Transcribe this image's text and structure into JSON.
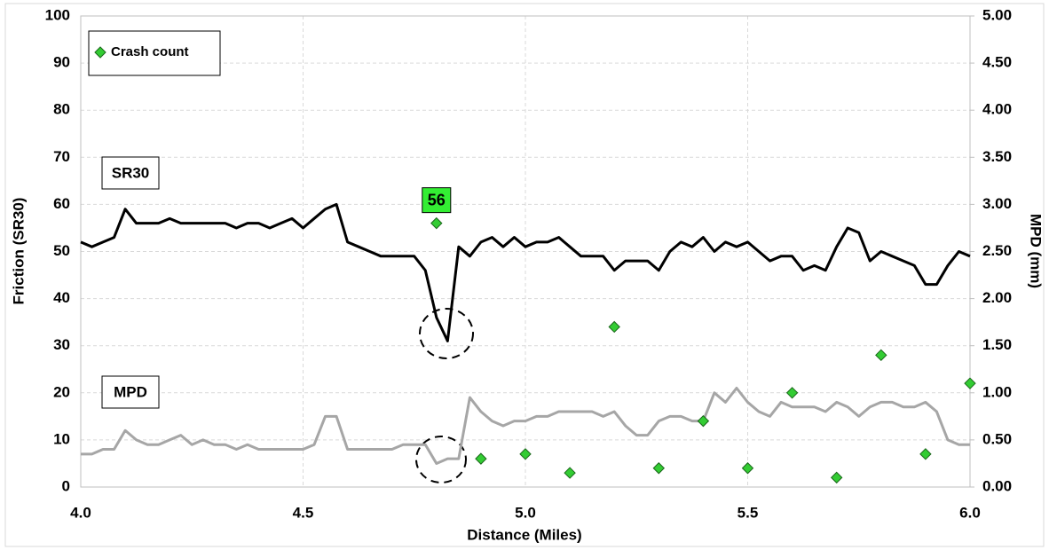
{
  "chart_data": {
    "type": "line",
    "xlabel": "Distance (Miles)",
    "ylabel": "Friction (SR30)",
    "y2label": "MPD (mm)",
    "xlim": [
      4,
      6
    ],
    "xticks": [
      {
        "value": 4,
        "label": "4.0"
      },
      4.5,
      {
        "value": 5,
        "label": "5.0"
      },
      5.5,
      {
        "value": 6,
        "label": "6.0"
      }
    ],
    "ylim": [
      0,
      100
    ],
    "yticks": [
      0,
      10,
      20,
      30,
      40,
      50,
      60,
      70,
      80,
      90,
      100
    ],
    "y2lim": [
      0,
      5
    ],
    "y2ticks": [
      {
        "value": 0,
        "label": "0.00"
      },
      {
        "value": 0.5,
        "label": "0.50"
      },
      {
        "value": 1,
        "label": "1.00"
      },
      {
        "value": 1.5,
        "label": "1.50"
      },
      {
        "value": 2,
        "label": "2.00"
      },
      {
        "value": 2.5,
        "label": "2.50"
      },
      {
        "value": 3,
        "label": "3.00"
      },
      {
        "value": 3.5,
        "label": "3.50"
      },
      {
        "value": 4,
        "label": "4.00"
      },
      {
        "value": 4.5,
        "label": "4.50"
      },
      {
        "value": 5,
        "label": "5.00"
      }
    ],
    "grid": true,
    "legend": "upper left",
    "series": [
      {
        "name": "SR30",
        "type": "line",
        "color": "#000000",
        "x": [
          4,
          4.025,
          4.05,
          4.075,
          4.1,
          4.125,
          4.15,
          4.175,
          4.2,
          4.225,
          4.25,
          4.275,
          4.3,
          4.325,
          4.35,
          4.375,
          4.4,
          4.425,
          4.45,
          4.475,
          4.5,
          4.525,
          4.55,
          4.575,
          4.6,
          4.625,
          4.65,
          4.675,
          4.7,
          4.725,
          4.75,
          4.775,
          4.8,
          4.825,
          4.85,
          4.875,
          4.9,
          4.925,
          4.95,
          4.975,
          5,
          5.025,
          5.05,
          5.075,
          5.1,
          5.125,
          5.15,
          5.175,
          5.2,
          5.225,
          5.25,
          5.275,
          5.3,
          5.325,
          5.35,
          5.375,
          5.4,
          5.425,
          5.45,
          5.475,
          5.5,
          5.525,
          5.55,
          5.575,
          5.6,
          5.625,
          5.65,
          5.675,
          5.7,
          5.725,
          5.75,
          5.775,
          5.8,
          5.825,
          5.85,
          5.875,
          5.9,
          5.925,
          5.95,
          5.975,
          6
        ],
        "values": [
          52,
          51,
          52,
          53,
          59,
          56,
          56,
          56,
          57,
          56,
          56,
          56,
          56,
          56,
          55,
          56,
          56,
          55,
          56,
          57,
          55,
          57,
          59,
          60,
          52,
          51,
          50,
          49,
          49,
          49,
          49,
          46,
          36,
          31,
          51,
          49,
          52,
          53,
          51,
          53,
          51,
          52,
          52,
          53,
          51,
          49,
          49,
          49,
          46,
          48,
          48,
          48,
          46,
          50,
          52,
          51,
          53,
          50,
          52,
          51,
          52,
          50,
          48,
          49,
          49,
          46,
          47,
          46,
          51,
          55,
          54,
          48,
          50,
          49,
          48,
          47,
          43,
          43,
          47,
          50,
          49
        ]
      },
      {
        "name": "MPD",
        "type": "line",
        "axis": "y2",
        "color": "#a6a6a6",
        "x": [
          4,
          4.025,
          4.05,
          4.075,
          4.1,
          4.125,
          4.15,
          4.175,
          4.2,
          4.225,
          4.25,
          4.275,
          4.3,
          4.325,
          4.35,
          4.375,
          4.4,
          4.425,
          4.45,
          4.475,
          4.5,
          4.525,
          4.55,
          4.575,
          4.6,
          4.625,
          4.65,
          4.675,
          4.7,
          4.725,
          4.75,
          4.775,
          4.8,
          4.825,
          4.85,
          4.875,
          4.9,
          4.925,
          4.95,
          4.975,
          5,
          5.025,
          5.05,
          5.075,
          5.1,
          5.125,
          5.15,
          5.175,
          5.2,
          5.225,
          5.25,
          5.275,
          5.3,
          5.325,
          5.35,
          5.375,
          5.4,
          5.425,
          5.45,
          5.475,
          5.5,
          5.525,
          5.55,
          5.575,
          5.6,
          5.625,
          5.65,
          5.675,
          5.7,
          5.725,
          5.75,
          5.775,
          5.8,
          5.825,
          5.85,
          5.875,
          5.9,
          5.925,
          5.95,
          5.975,
          6
        ],
        "values": [
          0.35,
          0.35,
          0.4,
          0.4,
          0.6,
          0.5,
          0.45,
          0.45,
          0.5,
          0.55,
          0.45,
          0.5,
          0.45,
          0.45,
          0.4,
          0.45,
          0.4,
          0.4,
          0.4,
          0.4,
          0.4,
          0.45,
          0.75,
          0.75,
          0.4,
          0.4,
          0.4,
          0.4,
          0.4,
          0.45,
          0.45,
          0.45,
          0.25,
          0.3,
          0.3,
          0.95,
          0.8,
          0.7,
          0.65,
          0.7,
          0.7,
          0.75,
          0.75,
          0.8,
          0.8,
          0.8,
          0.8,
          0.75,
          0.8,
          0.65,
          0.55,
          0.55,
          0.7,
          0.75,
          0.75,
          0.7,
          0.7,
          1,
          0.9,
          1.05,
          0.9,
          0.8,
          0.75,
          0.9,
          0.85,
          0.85,
          0.85,
          0.8,
          0.9,
          0.85,
          0.75,
          0.85,
          0.9,
          0.9,
          0.85,
          0.85,
          0.9,
          0.8,
          0.5,
          0.45,
          0.45
        ]
      },
      {
        "name": "Crash count",
        "type": "scatter",
        "color": "#33cc33",
        "x": [
          4.8,
          4.9,
          5,
          5.1,
          5.2,
          5.3,
          5.4,
          5.5,
          5.6,
          5.7,
          5.8,
          5.9,
          6
        ],
        "values": [
          56,
          6,
          7,
          3,
          34,
          4,
          14,
          4,
          20,
          2,
          28,
          7,
          22
        ]
      }
    ]
  }
}
